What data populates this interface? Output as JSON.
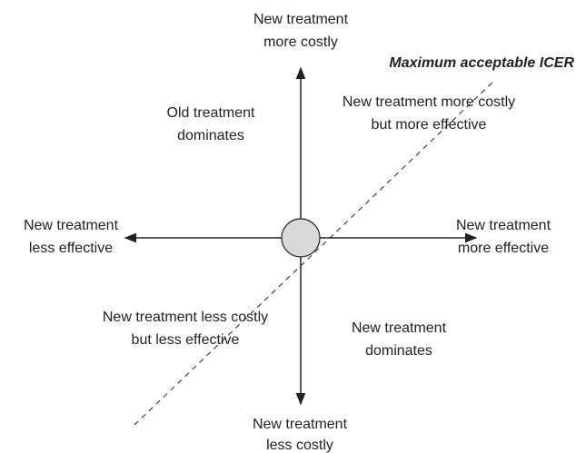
{
  "axes": {
    "top": [
      "New treatment",
      "more costly"
    ],
    "bottom": [
      "New treatment",
      "less costly"
    ],
    "left": [
      "New treatment",
      "less effective"
    ],
    "right": [
      "New treatment",
      "more effective"
    ]
  },
  "threshold_label": "Maximum acceptable ICER",
  "quadrants": {
    "upper_left": [
      "Old treatment",
      "dominates"
    ],
    "upper_right": [
      "New treatment more costly",
      "but more effective"
    ],
    "lower_left": [
      "New treatment less costly",
      "but less effective"
    ],
    "lower_right": [
      "New treatment",
      "dominates"
    ]
  }
}
